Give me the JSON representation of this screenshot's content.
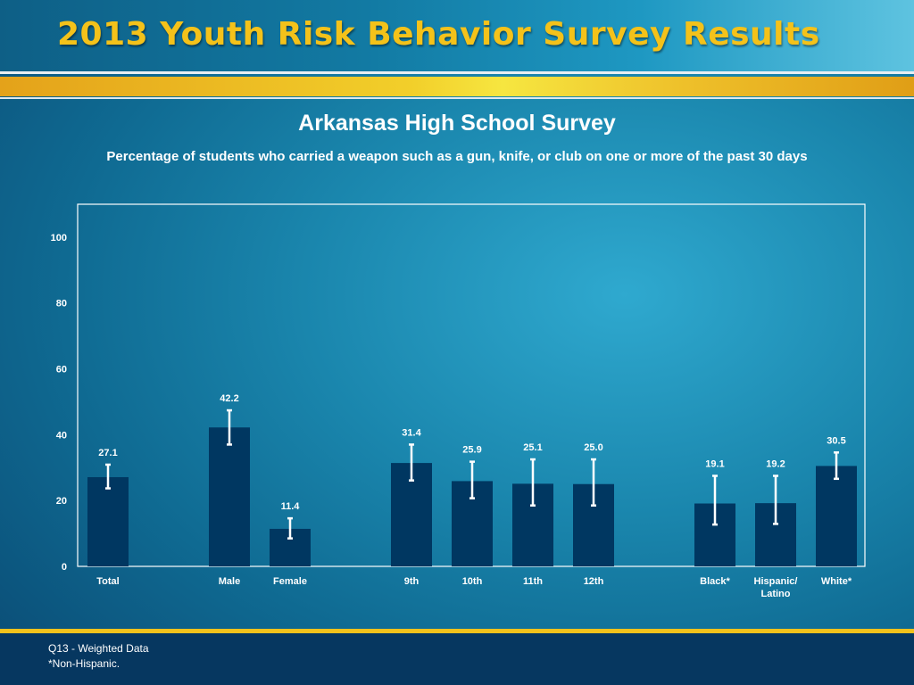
{
  "header": {
    "title": "2013 Youth Risk Behavior Survey Results"
  },
  "footer": {
    "note1": "Q13 - Weighted Data",
    "note2": "*Non-Hispanic."
  },
  "colors": {
    "bar": "#003761",
    "error_bar": "#ffffff",
    "title": "#f4c21a",
    "accent": "#f2c21c"
  },
  "chart_data": {
    "type": "bar",
    "title": "Arkansas High School Survey",
    "subtitle": "Percentage of students who carried a weapon such as a gun, knife, or club on one or more of the past 30 days",
    "xlabel": "",
    "ylabel": "",
    "ylim": [
      0,
      110
    ],
    "yticks": [
      0,
      20,
      40,
      60,
      80,
      100
    ],
    "grid": false,
    "categories": [
      {
        "label": [
          "Total"
        ],
        "value": 27.1,
        "value_label": "27.1",
        "ci": [
          23.7,
          30.9
        ],
        "group": 0
      },
      {
        "label": [
          "Male"
        ],
        "value": 42.2,
        "value_label": "42.2",
        "ci": [
          37.0,
          47.4
        ],
        "group": 1
      },
      {
        "label": [
          "Female"
        ],
        "value": 11.4,
        "value_label": "11.4",
        "ci": [
          8.5,
          14.6
        ],
        "group": 1
      },
      {
        "label": [
          "9th"
        ],
        "value": 31.4,
        "value_label": "31.4",
        "ci": [
          26.1,
          37.0
        ],
        "group": 2
      },
      {
        "label": [
          "10th"
        ],
        "value": 25.9,
        "value_label": "25.9",
        "ci": [
          20.7,
          31.8
        ],
        "group": 2
      },
      {
        "label": [
          "11th"
        ],
        "value": 25.1,
        "value_label": "25.1",
        "ci": [
          18.5,
          32.5
        ],
        "group": 2
      },
      {
        "label": [
          "12th"
        ],
        "value": 25.0,
        "value_label": "25.0",
        "ci": [
          18.5,
          32.5
        ],
        "group": 2
      },
      {
        "label": [
          "Black*"
        ],
        "value": 19.1,
        "value_label": "19.1",
        "ci": [
          12.7,
          27.5
        ],
        "group": 3
      },
      {
        "label": [
          "Hispanic/",
          "Latino"
        ],
        "value": 19.2,
        "value_label": "19.2",
        "ci": [
          12.9,
          27.5
        ],
        "group": 3
      },
      {
        "label": [
          "White*"
        ],
        "value": 30.5,
        "value_label": "30.5",
        "ci": [
          26.6,
          34.6
        ],
        "group": 3
      }
    ]
  }
}
